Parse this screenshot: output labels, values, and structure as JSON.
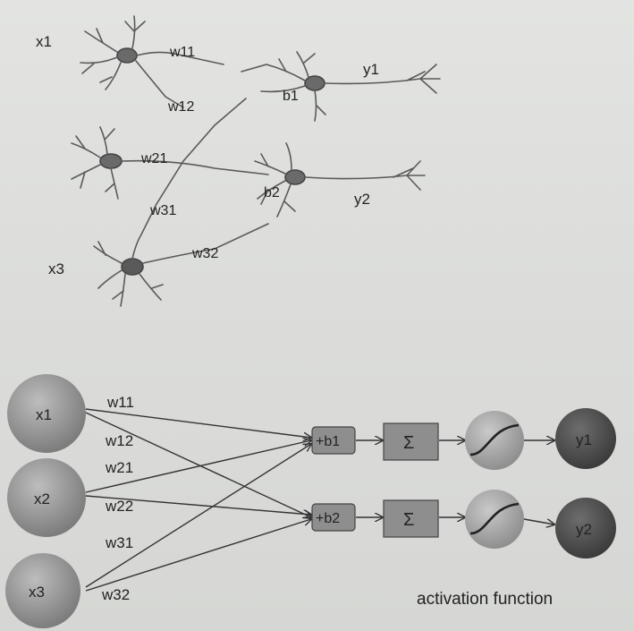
{
  "bio": {
    "inputs": [
      "x1",
      "x3"
    ],
    "weights": [
      "w11",
      "w12",
      "w21",
      "w31",
      "w32"
    ],
    "biases": [
      "b1",
      "b2"
    ],
    "outputs": [
      "y1",
      "y2"
    ]
  },
  "network": {
    "inputs": [
      "x1",
      "x2",
      "x3"
    ],
    "weights": [
      "w11",
      "w12",
      "w21",
      "w22",
      "w31",
      "w32"
    ],
    "bias_nodes": [
      "+b1",
      "+b2"
    ],
    "sum_symbol": "Σ",
    "outputs": [
      "y1",
      "y2"
    ],
    "activation_label": "activation function"
  },
  "colors": {
    "input_node": "#9a9a9a",
    "output_node": "#555555",
    "box": "#8e8e8e",
    "line": "#333333"
  }
}
